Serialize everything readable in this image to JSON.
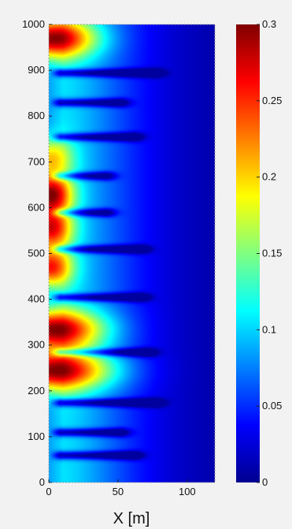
{
  "chart_data": {
    "type": "heatmap",
    "title": "",
    "xlabel": "X [m]",
    "ylabel": "",
    "xlim": [
      0,
      120
    ],
    "ylim": [
      0,
      1000
    ],
    "x_ticks": [
      "0",
      "50",
      "100"
    ],
    "y_ticks": [
      "0",
      "100",
      "200",
      "300",
      "400",
      "500",
      "600",
      "700",
      "800",
      "900",
      "1000"
    ],
    "colorbar": {
      "range": [
        0,
        0.3
      ],
      "ticks": [
        "0",
        "0.05",
        "0.1",
        "0.15",
        "0.2",
        "0.25",
        "0.3"
      ],
      "colormap": "jet"
    },
    "field": {
      "description_units": "value decays with X; horizontal low-value streaks and high-value lobes near X=0",
      "background_value_far_field": 0.0,
      "high_value_lobes": [
        {
          "y": 970,
          "peak": 0.3,
          "x_extent": 30
        },
        {
          "y": 710,
          "peak": 0.2,
          "x_extent": 15
        },
        {
          "y": 630,
          "peak": 0.3,
          "x_extent": 15
        },
        {
          "y": 555,
          "peak": 0.27,
          "x_extent": 15
        },
        {
          "y": 470,
          "peak": 0.26,
          "x_extent": 15
        },
        {
          "y": 335,
          "peak": 0.3,
          "x_extent": 35
        },
        {
          "y": 245,
          "peak": 0.3,
          "x_extent": 40
        }
      ],
      "low_value_streaks": [
        {
          "y": 60,
          "x_end": 60
        },
        {
          "y": 110,
          "x_end": 50
        },
        {
          "y": 175,
          "x_end": 75
        },
        {
          "y": 285,
          "x_end": 70
        },
        {
          "y": 405,
          "x_end": 65
        },
        {
          "y": 510,
          "x_end": 65
        },
        {
          "y": 590,
          "x_end": 40
        },
        {
          "y": 670,
          "x_end": 40
        },
        {
          "y": 755,
          "x_end": 60
        },
        {
          "y": 830,
          "x_end": 50
        },
        {
          "y": 895,
          "x_end": 75
        }
      ]
    }
  }
}
